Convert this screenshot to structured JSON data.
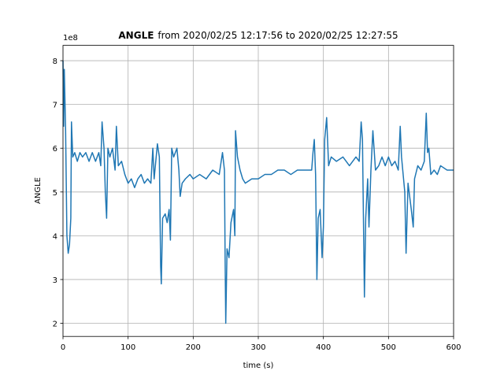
{
  "chart_data": {
    "type": "line",
    "title_bold": "ANGLE",
    "title": "from 2020/02/25 12:17:56 to 2020/02/25 12:27:55",
    "xlabel": "time (s)",
    "ylabel": "ANGLE",
    "offset_text": "1e8",
    "color": "#1f77b4",
    "grid": true,
    "xlim": [
      0,
      600
    ],
    "xticks": [
      0,
      100,
      200,
      300,
      400,
      500,
      600
    ],
    "ylim": [
      1.7,
      8.35
    ],
    "yticks": [
      2,
      3,
      4,
      5,
      6,
      7,
      8
    ],
    "x": [
      0,
      1,
      2,
      4,
      6,
      8,
      10,
      12,
      13,
      15,
      18,
      22,
      26,
      30,
      35,
      40,
      45,
      50,
      55,
      58,
      60,
      63,
      65,
      67,
      69,
      72,
      76,
      80,
      82,
      85,
      90,
      95,
      100,
      105,
      110,
      115,
      120,
      125,
      130,
      135,
      138,
      140,
      145,
      148,
      150,
      151,
      153,
      157,
      160,
      163,
      165,
      167,
      170,
      175,
      178,
      180,
      183,
      188,
      195,
      200,
      210,
      220,
      230,
      240,
      245,
      248,
      249,
      250,
      252,
      255,
      258,
      262,
      264,
      265,
      268,
      272,
      276,
      280,
      290,
      300,
      310,
      320,
      330,
      340,
      350,
      360,
      370,
      378,
      382,
      384,
      386,
      388,
      390,
      392,
      395,
      398,
      400,
      402,
      405,
      408,
      412,
      420,
      430,
      440,
      450,
      455,
      458,
      460,
      462,
      463,
      465,
      468,
      470,
      473,
      476,
      480,
      485,
      490,
      495,
      500,
      505,
      510,
      515,
      518,
      520,
      525,
      527,
      530,
      535,
      538,
      540,
      545,
      550,
      555,
      558,
      560,
      562,
      565,
      570,
      575,
      580,
      590,
      600
    ],
    "values": [
      8.0,
      6.5,
      7.8,
      6.4,
      4.0,
      3.6,
      3.8,
      4.4,
      6.6,
      5.8,
      5.9,
      5.7,
      5.9,
      5.8,
      5.9,
      5.7,
      5.9,
      5.7,
      5.9,
      5.6,
      6.6,
      6.0,
      5.0,
      4.4,
      6.0,
      5.8,
      6.0,
      5.5,
      6.5,
      5.6,
      5.7,
      5.4,
      5.2,
      5.3,
      5.1,
      5.3,
      5.4,
      5.2,
      5.3,
      5.2,
      6.0,
      5.3,
      6.1,
      5.8,
      3.3,
      2.9,
      4.4,
      4.5,
      4.3,
      4.6,
      3.9,
      6.0,
      5.8,
      6.0,
      5.5,
      4.9,
      5.2,
      5.3,
      5.4,
      5.3,
      5.4,
      5.3,
      5.5,
      5.4,
      5.9,
      5.5,
      3.5,
      2.0,
      3.7,
      3.5,
      4.3,
      4.6,
      4.0,
      6.4,
      5.8,
      5.5,
      5.3,
      5.2,
      5.3,
      5.3,
      5.4,
      5.4,
      5.5,
      5.5,
      5.4,
      5.5,
      5.5,
      5.5,
      5.5,
      5.9,
      6.2,
      5.4,
      3.0,
      4.4,
      4.6,
      3.5,
      4.2,
      6.2,
      6.7,
      5.6,
      5.8,
      5.7,
      5.8,
      5.6,
      5.8,
      5.7,
      6.6,
      6.2,
      3.8,
      2.6,
      4.4,
      5.3,
      4.2,
      5.5,
      6.4,
      5.5,
      5.6,
      5.8,
      5.6,
      5.8,
      5.6,
      5.7,
      5.5,
      6.5,
      5.8,
      5.0,
      3.6,
      5.2,
      4.6,
      4.2,
      5.3,
      5.6,
      5.5,
      5.7,
      6.8,
      5.9,
      6.0,
      5.4,
      5.5,
      5.4,
      5.6,
      5.5,
      5.5
    ]
  }
}
